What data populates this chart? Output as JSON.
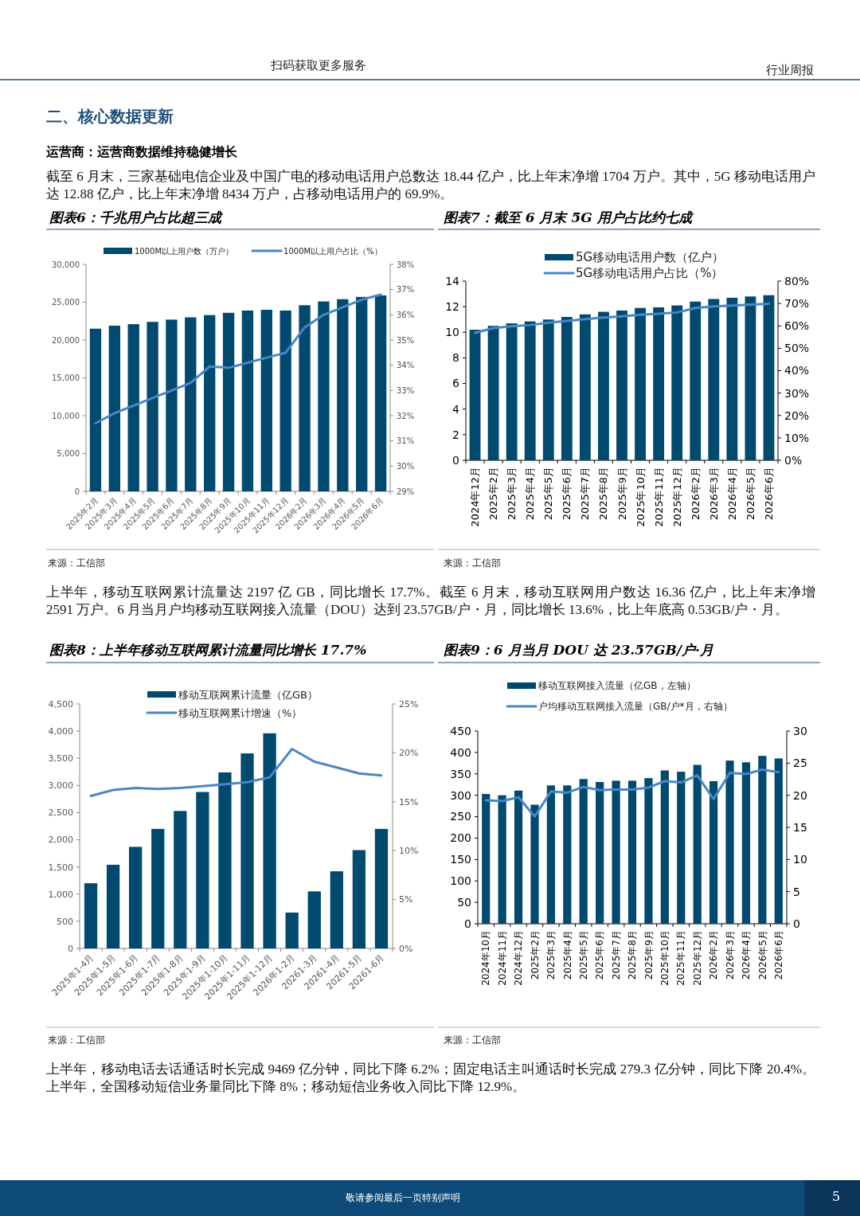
{
  "chart_data": [
    {
      "type": "other",
      "title": "二、核心数据更新",
      "subtitle": "运营商：运营商数据维持稳健增长",
      "annotations": [
        "扫码获取更多服务",
        "行业周报",
        "截至 6 月末，三家基础电信企业及中国广电的移动电话用户总数达 18.44 亿户，比上年末净增 1704 万户。其中，5G 移动电话用户达 12.88 亿户，比上年末净增 8434 万户，占移动电话用户的 69.9%。"
      ]
    },
    {
      "type": "bar",
      "title": "图表6：千兆用户占比超三成",
      "legend": "top",
      "categories": [
        "2025年2月",
        "2025年3月",
        "2025年4月",
        "2025年5月",
        "2025年6月",
        "2025年7月",
        "2025年8月",
        "2025年9月",
        "2025年10月",
        "2025年11月",
        "2025年12月",
        "2026年2月",
        "2026年3月",
        "2026年4月",
        "2026年5月",
        "2026年6月"
      ],
      "series": [
        {
          "name": "1000M以上用户数（万户）",
          "type": "bar",
          "color": "#004a70",
          "values": [
            21500,
            21900,
            22100,
            22400,
            22700,
            23000,
            23300,
            23600,
            23900,
            24000,
            23900,
            24600,
            25100,
            25400,
            25700,
            25900
          ]
        },
        {
          "name": "1000M以上用户占比（%）",
          "type": "line",
          "axis": "y2",
          "color": "#4a86c6",
          "values": [
            31.7,
            32.1,
            32.4,
            32.7,
            33.0,
            33.3,
            33.95,
            33.9,
            34.1,
            34.3,
            34.5,
            35.5,
            36.0,
            36.3,
            36.6,
            36.8
          ]
        }
      ],
      "ylim": [
        0,
        30000
      ],
      "yticks": [
        0,
        {
          "value": 5000,
          "label": "5,000"
        },
        {
          "value": 10000,
          "label": "10,000"
        },
        {
          "value": 15000,
          "label": "15,000"
        },
        {
          "value": 20000,
          "label": "20,000"
        },
        {
          "value": 25000,
          "label": "25,000"
        },
        {
          "value": 30000,
          "label": "30,000"
        }
      ],
      "y2lim": [
        29,
        38
      ],
      "y2ticks": [
        {
          "value": 29,
          "label": "29%"
        },
        {
          "value": 30,
          "label": "30%"
        },
        {
          "value": 31,
          "label": "31%"
        },
        {
          "value": 32,
          "label": "32%"
        },
        {
          "value": 33,
          "label": "33%"
        },
        {
          "value": 34,
          "label": "34%"
        },
        {
          "value": 35,
          "label": "35%"
        },
        {
          "value": 36,
          "label": "36%"
        },
        {
          "value": 37,
          "label": "37%"
        },
        {
          "value": 38,
          "label": "38%"
        }
      ],
      "annotations": [
        "来源：工信部"
      ]
    },
    {
      "type": "bar",
      "title": "图表7：截至 6 月末 5G 用户占比约七成",
      "legend": "top",
      "categories": [
        "2024年12月",
        "2025年2月",
        "2025年3月",
        "2025年4月",
        "2025年5月",
        "2025年6月",
        "2025年7月",
        "2025年8月",
        "2025年9月",
        "2025年10月",
        "2025年11月",
        "2025年12月",
        "2026年2月",
        "2026年3月",
        "2026年4月",
        "2026年5月",
        "2026年6月"
      ],
      "series": [
        {
          "name": "5G移动电话用户数（亿户）",
          "type": "bar",
          "color": "#004a70",
          "values": [
            10.2,
            10.5,
            10.7,
            10.85,
            11.0,
            11.2,
            11.4,
            11.6,
            11.7,
            11.9,
            11.95,
            12.1,
            12.4,
            12.6,
            12.7,
            12.8,
            12.9
          ]
        },
        {
          "name": "5G移动电话用户占比（%）",
          "type": "line",
          "axis": "y2",
          "color": "#4a86c6",
          "values": [
            56.9,
            59.0,
            59.8,
            60.4,
            61.4,
            62.2,
            63.0,
            63.7,
            64.3,
            65.0,
            65.4,
            66.0,
            68.0,
            68.7,
            69.1,
            69.5,
            69.9
          ]
        }
      ],
      "ylim": [
        0,
        14
      ],
      "yticks": [
        0,
        2,
        4,
        6,
        8,
        10,
        12,
        14
      ],
      "y2lim": [
        0,
        80
      ],
      "y2ticks": [
        {
          "value": 0,
          "label": "0%"
        },
        {
          "value": 10,
          "label": "10%"
        },
        {
          "value": 20,
          "label": "20%"
        },
        {
          "value": 30,
          "label": "30%"
        },
        {
          "value": 40,
          "label": "40%"
        },
        {
          "value": 50,
          "label": "50%"
        },
        {
          "value": 60,
          "label": "60%"
        },
        {
          "value": 70,
          "label": "70%"
        },
        {
          "value": 80,
          "label": "80%"
        }
      ],
      "annotations": [
        "来源：工信部"
      ]
    },
    {
      "type": "other",
      "annotations": [
        "上半年，移动互联网累计流量达 2197 亿 GB，同比增长 17.7%。截至 6 月末，移动互联网用户数达 16.36 亿户，比上年末净增 2591 万户。6 月当月户均移动互联网接入流量（DOU）达到 23.57GB/户・月，同比增长 13.6%，比上年底高 0.53GB/户・月。"
      ]
    },
    {
      "type": "bar",
      "title": "图表8：上半年移动互联网累计流量同比增长 17.7%",
      "legend": "top",
      "categories": [
        "2025年1-4月",
        "2025年1-5月",
        "2025年1-6月",
        "2025年1-7月",
        "2025年1-8月",
        "2025年1-9月",
        "2025年1-10月",
        "2025年1-11月",
        "2025年1-12月",
        "2026年1-2月",
        "20261-3月",
        "20261-4月",
        "20261-5月",
        "20261-6月"
      ],
      "series": [
        {
          "name": "移动互联网累计流量（亿GB）",
          "type": "bar",
          "color": "#004a70",
          "values": [
            1200,
            1540,
            1870,
            2200,
            2530,
            2880,
            3240,
            3590,
            3960,
            660,
            1050,
            1420,
            1810,
            2200
          ]
        },
        {
          "name": "移动互联网累计增速（%）",
          "type": "line",
          "axis": "y2",
          "color": "#4a86c6",
          "values": [
            15.6,
            16.2,
            16.4,
            16.3,
            16.4,
            16.6,
            16.8,
            17.0,
            17.5,
            20.4,
            19.1,
            18.5,
            17.9,
            17.7
          ]
        }
      ],
      "ylim": [
        0,
        4500
      ],
      "yticks": [
        0,
        500,
        {
          "value": 1000,
          "label": "1,000"
        },
        {
          "value": 1500,
          "label": "1,500"
        },
        {
          "value": 2000,
          "label": "2,000"
        },
        {
          "value": 2500,
          "label": "2,500"
        },
        {
          "value": 3000,
          "label": "3,000"
        },
        {
          "value": 3500,
          "label": "3,500"
        },
        {
          "value": 4000,
          "label": "4,000"
        },
        {
          "value": 4500,
          "label": "4,500"
        }
      ],
      "y2lim": [
        0,
        25
      ],
      "y2ticks": [
        {
          "value": 0,
          "label": "0%"
        },
        {
          "value": 5,
          "label": "5%"
        },
        {
          "value": 10,
          "label": "10%"
        },
        {
          "value": 15,
          "label": "15%"
        },
        {
          "value": 20,
          "label": "20%"
        },
        {
          "value": 25,
          "label": "25%"
        }
      ],
      "annotations": [
        "来源：工信部"
      ]
    },
    {
      "type": "bar",
      "title": "图表9：6 月当月 DOU 达 23.57GB/户·月",
      "legend": "top",
      "categories": [
        "2024年10月",
        "2024年11月",
        "2024年12月",
        "2025年2月",
        "2025年3月",
        "2025年4月",
        "2025年5月",
        "2025年6月",
        "2025年7月",
        "2025年8月",
        "2025年9月",
        "2025年10月",
        "2025年11月",
        "2025年12月",
        "2026年2月",
        "2026年3月",
        "2026年4月",
        "2026年5月",
        "2026年6月"
      ],
      "series": [
        {
          "name": "移动互联网接入流量（亿GB，左轴）",
          "type": "bar",
          "color": "#004a70",
          "values": [
            303,
            300,
            311,
            278,
            323,
            323,
            338,
            331,
            334,
            334,
            340,
            358,
            355,
            371,
            333,
            381,
            377,
            392,
            386
          ]
        },
        {
          "name": "户均移动互联网接入流量（GB/户*月，右轴）",
          "type": "line",
          "axis": "y2",
          "color": "#4a86c6",
          "values": [
            19.2,
            19.1,
            19.7,
            16.7,
            20.6,
            20.4,
            21.3,
            20.8,
            20.9,
            20.9,
            21.2,
            22.2,
            22.0,
            23.1,
            19.4,
            23.5,
            23.3,
            24.0,
            23.6
          ]
        }
      ],
      "ylim": [
        0,
        450
      ],
      "yticks": [
        0,
        50,
        100,
        150,
        200,
        250,
        300,
        350,
        400,
        450
      ],
      "y2lim": [
        0,
        30
      ],
      "y2ticks": [
        0,
        5,
        10,
        15,
        20,
        25,
        30
      ],
      "annotations": [
        "来源：工信部"
      ]
    },
    {
      "type": "other",
      "annotations": [
        "上半年，移动电话去话通话时长完成 9469 亿分钟，同比下降 6.2%；固定电话主叫通话时长完成 279.3 亿分钟，同比下降 20.4%。上半年，全国移动短信业务量同比下降 8%；移动短信业务收入同比下降 12.9%。",
        "敬请参阅最后一页特别声明",
        "5"
      ]
    }
  ]
}
